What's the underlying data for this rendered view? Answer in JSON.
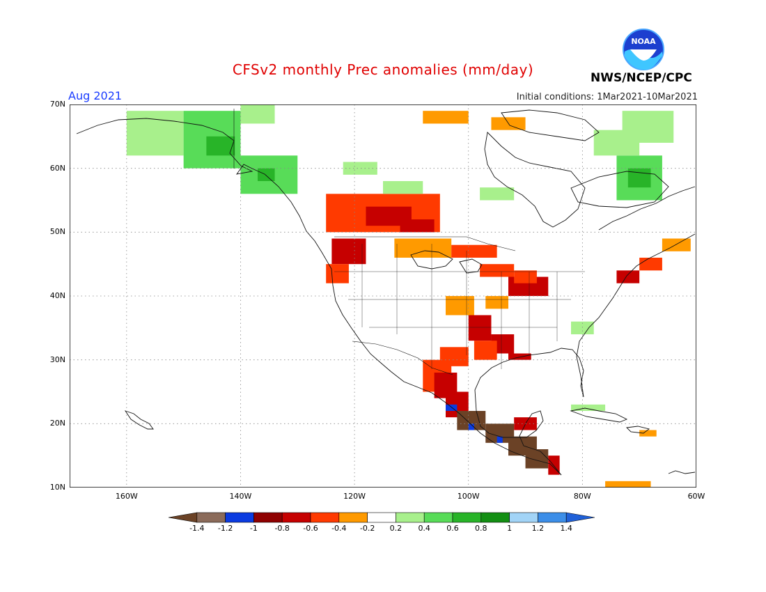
{
  "title": "CFSv2 monthly Prec anomalies (mm/day)",
  "valid_month": "Aug 2021",
  "initial_conditions": "Initial conditions: 1Mar2021-10Mar2021",
  "agency": "NWS/NCEP/CPC",
  "logo_text": "NOAA",
  "lat_labels": [
    "70N",
    "60N",
    "50N",
    "40N",
    "30N",
    "20N",
    "10N"
  ],
  "lon_labels": [
    "160W",
    "140W",
    "120W",
    "100W",
    "80W",
    "60W"
  ],
  "legend": {
    "labels": [
      "-1.4",
      "-1.2",
      "-1",
      "-0.8",
      "-0.6",
      "-0.4",
      "-0.2",
      "0.2",
      "0.4",
      "0.6",
      "0.8",
      "1",
      "1.2",
      "1.4"
    ],
    "colors": [
      "#6b4226",
      "#8b6b5a",
      "#0b3be0",
      "#8f0000",
      "#c60000",
      "#ff3a00",
      "#ff9a00",
      "#ffffff",
      "#a8f08c",
      "#58dc58",
      "#28b428",
      "#138f13",
      "#a2d4f7",
      "#3c8ee8",
      "#1f60d8"
    ]
  },
  "colors": {
    "dry_extreme": "#6b4226",
    "dry_strong": "#c60000",
    "dry_moderate": "#ff3a00",
    "dry_weak": "#ff9a00",
    "wet_weak": "#a8f08c",
    "wet_moderate": "#58dc58",
    "wet_strong": "#28b428",
    "wet_extreme_blue": "#0b3be0"
  }
}
